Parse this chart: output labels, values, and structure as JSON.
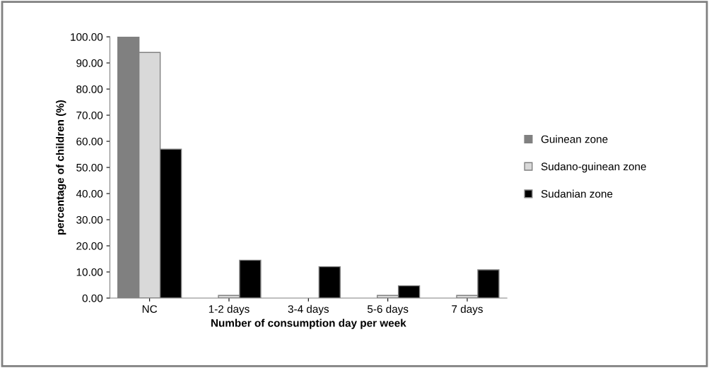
{
  "chart_data": {
    "type": "bar",
    "xlabel": "Number of consumption day per week",
    "ylabel": "percentage of children (%)",
    "categories": [
      "NC",
      "1-2 days",
      "3-4 days",
      "5-6 days",
      "7 days"
    ],
    "series": [
      {
        "name": "Guinean zone",
        "color": "#808080",
        "values": [
          100,
          0,
          0,
          0,
          0
        ]
      },
      {
        "name": "Sudano-guinean zone",
        "color": "#d9d9d9",
        "values": [
          94,
          1,
          0,
          1,
          1
        ]
      },
      {
        "name": "Sudanian zone",
        "color": "#000000",
        "values": [
          57,
          14.5,
          12,
          4.7,
          10.8
        ]
      }
    ],
    "ylim": [
      0,
      100
    ],
    "yticks": [
      {
        "value": 0,
        "label": "0.00"
      },
      {
        "value": 10,
        "label": "10.00"
      },
      {
        "value": 20,
        "label": "20.00"
      },
      {
        "value": 30,
        "label": "30.00"
      },
      {
        "value": 40,
        "label": "40.00"
      },
      {
        "value": 50,
        "label": "50.00"
      },
      {
        "value": 60,
        "label": "60.00"
      },
      {
        "value": 70,
        "label": "70.00"
      },
      {
        "value": 80,
        "label": "80.00"
      },
      {
        "value": 90,
        "label": "90.00"
      },
      {
        "value": 100,
        "label": "100.00"
      }
    ],
    "grid": false,
    "legend": "right"
  }
}
